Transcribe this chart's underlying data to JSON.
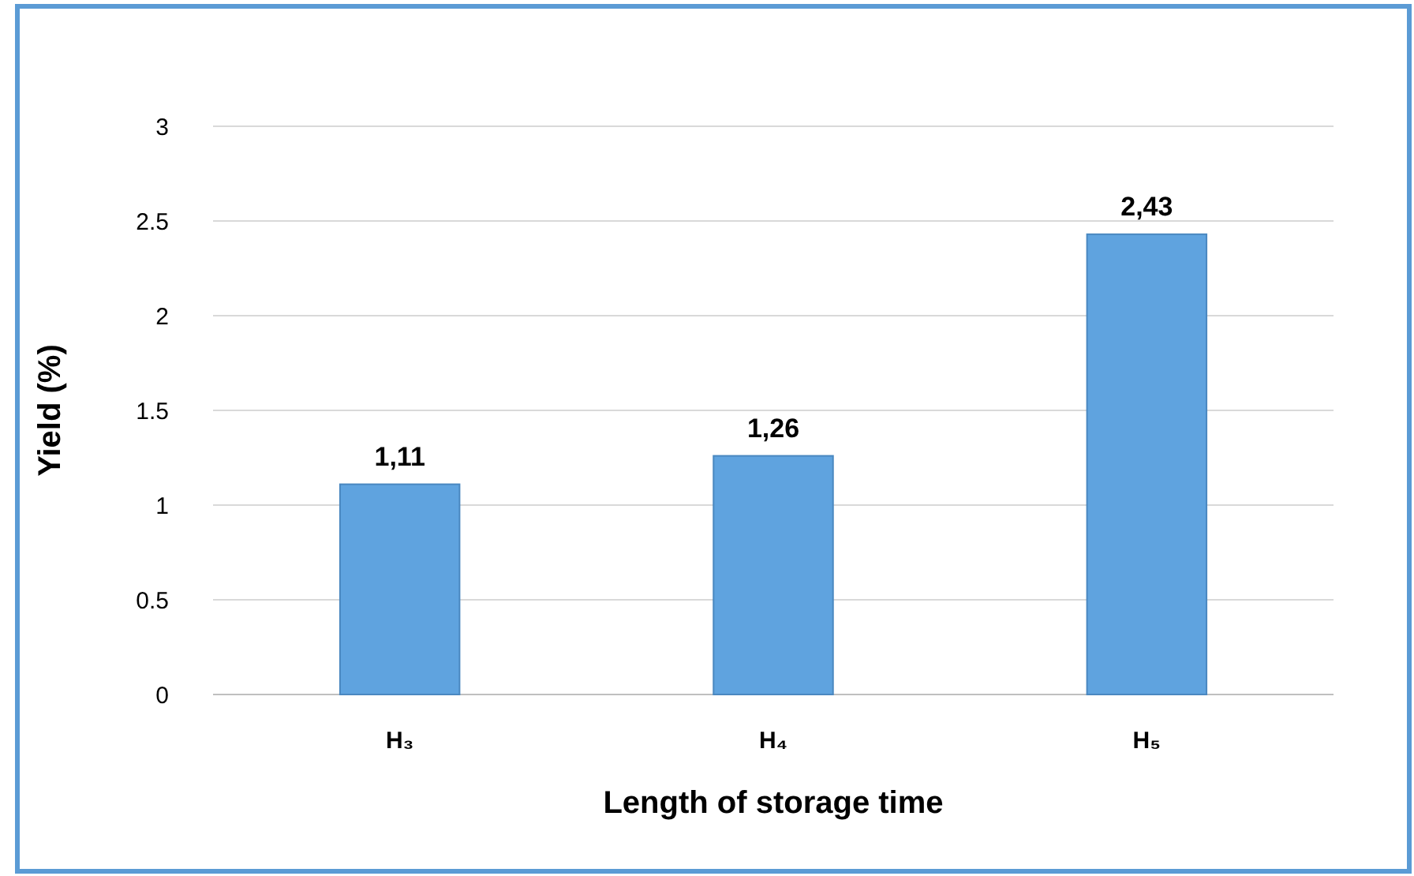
{
  "chart_data": {
    "type": "bar",
    "xlabel": "Length of storage time",
    "ylabel": "Yield (%)",
    "categories": [
      "H₃",
      "H₄",
      "H₅"
    ],
    "values": [
      1.11,
      1.26,
      2.43
    ],
    "value_labels": [
      "1,11",
      "1,26",
      "2,43"
    ],
    "color": "#5fa3df",
    "ylim": [
      0,
      3
    ],
    "yticks": [
      0,
      0.5,
      1,
      1.5,
      2,
      2.5,
      3
    ],
    "grid": "y"
  }
}
